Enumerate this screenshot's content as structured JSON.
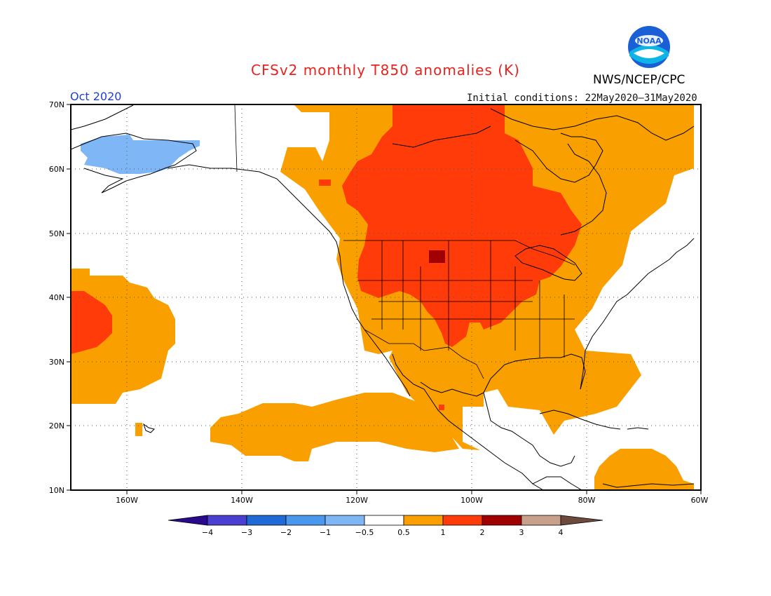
{
  "header": {
    "title": "CFSv2 monthly T850 anomalies (K)",
    "agency": "NWS/NCEP/CPC",
    "logo_text": "NOAA",
    "period": "Oct 2020",
    "initial_conditions": "Initial conditions: 22May2020–31May2020"
  },
  "map": {
    "lat_labels": [
      "70N",
      "60N",
      "50N",
      "40N",
      "30N",
      "20N",
      "10N"
    ],
    "lon_labels": [
      "160W",
      "140W",
      "120W",
      "100W",
      "80W",
      "60W"
    ],
    "gridlines": "dotted",
    "colors": {
      "neg1": "#7fb6f5",
      "pos05": "#fa9f00",
      "pos1": "#ff3b0a",
      "pos2": "#a10002"
    }
  },
  "colorbar": {
    "labels": [
      "−4",
      "−3",
      "−2",
      "−1",
      "−0.5",
      "0.5",
      "1",
      "2",
      "3",
      "4"
    ],
    "colors": [
      "#2a0a8c",
      "#4a3fd0",
      "#1f6ad6",
      "#4a98ee",
      "#7fb6f5",
      "#ffffff",
      "#fa9f00",
      "#ff3b0a",
      "#a10002",
      "#c8a08c",
      "#6e4a3c"
    ]
  }
}
